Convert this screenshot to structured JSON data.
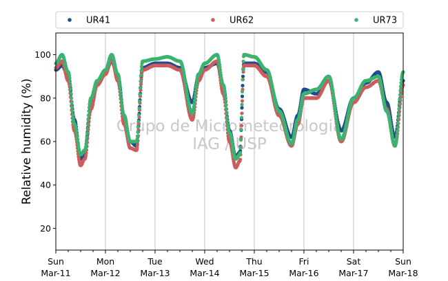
{
  "chart_data": {
    "type": "scatter",
    "ylabel": "Relative humidity (%)",
    "xlabel": "",
    "ylim": [
      10,
      110
    ],
    "yticks": [
      20,
      40,
      60,
      80,
      100
    ],
    "xlim": [
      "2018-03-11 00:00",
      "2018-03-18 00:00"
    ],
    "xticks": [
      {
        "at": "2018-03-11",
        "day": "Sun",
        "date": "Mar-11"
      },
      {
        "at": "2018-03-12",
        "day": "Mon",
        "date": "Mar-12"
      },
      {
        "at": "2018-03-13",
        "day": "Tue",
        "date": "Mar-13"
      },
      {
        "at": "2018-03-14",
        "day": "Wed",
        "date": "Mar-14"
      },
      {
        "at": "2018-03-15",
        "day": "Thu",
        "date": "Mar-15"
      },
      {
        "at": "2018-03-16",
        "day": "Fri",
        "date": "Mar-16"
      },
      {
        "at": "2018-03-17",
        "day": "Sat",
        "date": "Mar-17"
      },
      {
        "at": "2018-03-18",
        "day": "Sun",
        "date": "Mar-18"
      }
    ],
    "grid": "vertical-major",
    "legend_position": "top",
    "watermark": [
      "Grupo de Micrometeorologia",
      "IAG / USP"
    ],
    "series": [
      {
        "name": "UR41",
        "color": "#1f4e8c",
        "points": [
          [
            "2018-03-11 00:00",
            93
          ],
          [
            "2018-03-11 03:00",
            95
          ],
          [
            "2018-03-11 06:00",
            90
          ],
          [
            "2018-03-11 09:00",
            70
          ],
          [
            "2018-03-11 12:00",
            52
          ],
          [
            "2018-03-11 14:00",
            55
          ],
          [
            "2018-03-11 17:00",
            78
          ],
          [
            "2018-03-11 20:00",
            87
          ],
          [
            "2018-03-12 00:00",
            92
          ],
          [
            "2018-03-12 03:00",
            97
          ],
          [
            "2018-03-12 06:00",
            90
          ],
          [
            "2018-03-12 09:00",
            72
          ],
          [
            "2018-03-12 12:00",
            60
          ],
          [
            "2018-03-12 15:00",
            58
          ],
          [
            "2018-03-12 18:00",
            94
          ],
          [
            "2018-03-13 00:00",
            96
          ],
          [
            "2018-03-13 06:00",
            96
          ],
          [
            "2018-03-13 12:00",
            94
          ],
          [
            "2018-03-13 18:00",
            78
          ],
          [
            "2018-03-13 21:00",
            90
          ],
          [
            "2018-03-14 00:00",
            94
          ],
          [
            "2018-03-14 06:00",
            96
          ],
          [
            "2018-03-14 09:00",
            85
          ],
          [
            "2018-03-14 12:00",
            65
          ],
          [
            "2018-03-14 15:00",
            53
          ],
          [
            "2018-03-14 17:00",
            55
          ],
          [
            "2018-03-14 19:00",
            96
          ],
          [
            "2018-03-15 00:00",
            96
          ],
          [
            "2018-03-15 06:00",
            92
          ],
          [
            "2018-03-15 12:00",
            75
          ],
          [
            "2018-03-15 18:00",
            62
          ],
          [
            "2018-03-15 21:00",
            72
          ],
          [
            "2018-03-16 00:00",
            84
          ],
          [
            "2018-03-16 06:00",
            82
          ],
          [
            "2018-03-16 12:00",
            88
          ],
          [
            "2018-03-16 18:00",
            65
          ],
          [
            "2018-03-17 00:00",
            80
          ],
          [
            "2018-03-17 06:00",
            87
          ],
          [
            "2018-03-17 12:00",
            92
          ],
          [
            "2018-03-17 16:00",
            78
          ],
          [
            "2018-03-17 20:00",
            62
          ],
          [
            "2018-03-18 00:00",
            88
          ]
        ]
      },
      {
        "name": "UR62",
        "color": "#cd5c5c",
        "points": [
          [
            "2018-03-11 00:00",
            94
          ],
          [
            "2018-03-11 03:00",
            97
          ],
          [
            "2018-03-11 06:00",
            88
          ],
          [
            "2018-03-11 09:00",
            65
          ],
          [
            "2018-03-11 12:00",
            49
          ],
          [
            "2018-03-11 14:00",
            52
          ],
          [
            "2018-03-11 17:00",
            75
          ],
          [
            "2018-03-11 20:00",
            86
          ],
          [
            "2018-03-12 00:00",
            91
          ],
          [
            "2018-03-12 03:00",
            98
          ],
          [
            "2018-03-12 06:00",
            88
          ],
          [
            "2018-03-12 09:00",
            68
          ],
          [
            "2018-03-12 12:00",
            57
          ],
          [
            "2018-03-12 15:00",
            56
          ],
          [
            "2018-03-12 18:00",
            93
          ],
          [
            "2018-03-13 00:00",
            95
          ],
          [
            "2018-03-13 06:00",
            95
          ],
          [
            "2018-03-13 12:00",
            93
          ],
          [
            "2018-03-13 18:00",
            70
          ],
          [
            "2018-03-13 21:00",
            88
          ],
          [
            "2018-03-14 00:00",
            93
          ],
          [
            "2018-03-14 06:00",
            97
          ],
          [
            "2018-03-14 09:00",
            82
          ],
          [
            "2018-03-14 12:00",
            60
          ],
          [
            "2018-03-14 15:00",
            48
          ],
          [
            "2018-03-14 17:00",
            51
          ],
          [
            "2018-03-14 19:00",
            95
          ],
          [
            "2018-03-15 00:00",
            95
          ],
          [
            "2018-03-15 06:00",
            90
          ],
          [
            "2018-03-15 12:00",
            72
          ],
          [
            "2018-03-15 18:00",
            58
          ],
          [
            "2018-03-15 21:00",
            68
          ],
          [
            "2018-03-16 00:00",
            80
          ],
          [
            "2018-03-16 06:00",
            80
          ],
          [
            "2018-03-16 12:00",
            88
          ],
          [
            "2018-03-16 18:00",
            60
          ],
          [
            "2018-03-17 00:00",
            78
          ],
          [
            "2018-03-17 06:00",
            85
          ],
          [
            "2018-03-17 12:00",
            88
          ],
          [
            "2018-03-17 16:00",
            75
          ],
          [
            "2018-03-17 20:00",
            58
          ],
          [
            "2018-03-18 00:00",
            86
          ]
        ]
      },
      {
        "name": "UR73",
        "color": "#3cb371",
        "points": [
          [
            "2018-03-11 00:00",
            96
          ],
          [
            "2018-03-11 03:00",
            100
          ],
          [
            "2018-03-11 06:00",
            92
          ],
          [
            "2018-03-11 09:00",
            68
          ],
          [
            "2018-03-11 12:00",
            54
          ],
          [
            "2018-03-11 14:00",
            56
          ],
          [
            "2018-03-11 17:00",
            80
          ],
          [
            "2018-03-11 20:00",
            88
          ],
          [
            "2018-03-12 00:00",
            93
          ],
          [
            "2018-03-12 03:00",
            100
          ],
          [
            "2018-03-12 06:00",
            91
          ],
          [
            "2018-03-12 09:00",
            72
          ],
          [
            "2018-03-12 12:00",
            60
          ],
          [
            "2018-03-12 15:00",
            60
          ],
          [
            "2018-03-12 18:00",
            97
          ],
          [
            "2018-03-13 00:00",
            98
          ],
          [
            "2018-03-13 06:00",
            99
          ],
          [
            "2018-03-13 12:00",
            97
          ],
          [
            "2018-03-13 18:00",
            73
          ],
          [
            "2018-03-13 21:00",
            91
          ],
          [
            "2018-03-14 00:00",
            96
          ],
          [
            "2018-03-14 06:00",
            100
          ],
          [
            "2018-03-14 09:00",
            86
          ],
          [
            "2018-03-14 12:00",
            64
          ],
          [
            "2018-03-14 15:00",
            52
          ],
          [
            "2018-03-14 17:00",
            54
          ],
          [
            "2018-03-14 19:00",
            100
          ],
          [
            "2018-03-15 00:00",
            99
          ],
          [
            "2018-03-15 06:00",
            93
          ],
          [
            "2018-03-15 12:00",
            74
          ],
          [
            "2018-03-15 18:00",
            59
          ],
          [
            "2018-03-15 21:00",
            70
          ],
          [
            "2018-03-16 00:00",
            82
          ],
          [
            "2018-03-16 06:00",
            84
          ],
          [
            "2018-03-16 12:00",
            90
          ],
          [
            "2018-03-16 18:00",
            61
          ],
          [
            "2018-03-17 00:00",
            80
          ],
          [
            "2018-03-17 06:00",
            88
          ],
          [
            "2018-03-17 12:00",
            90
          ],
          [
            "2018-03-17 16:00",
            74
          ],
          [
            "2018-03-17 20:00",
            58
          ],
          [
            "2018-03-18 00:00",
            92
          ]
        ]
      }
    ]
  }
}
